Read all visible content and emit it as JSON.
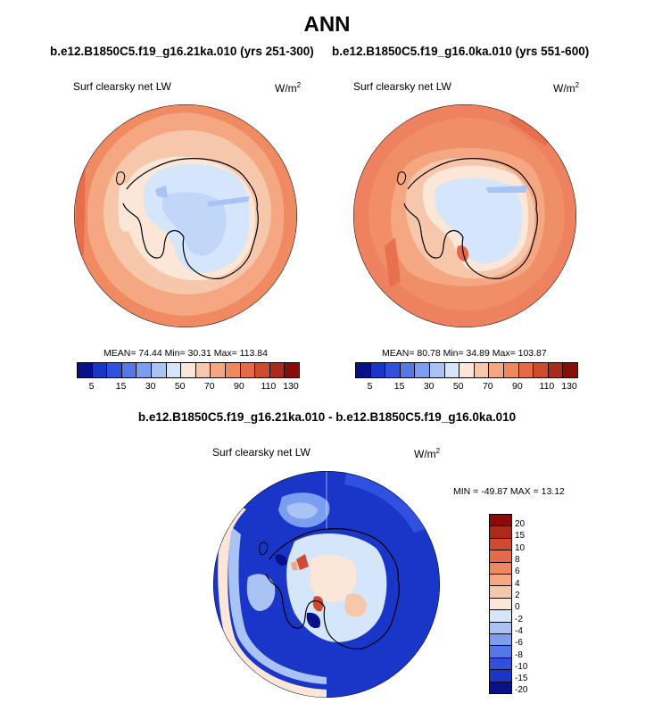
{
  "page": {
    "title": "ANN"
  },
  "panels": [
    {
      "case": "b.e12.B1850C5.f19_g16.21ka.010 (yrs 251-300)",
      "variable": "Surf clearsky net LW",
      "units": "W/m",
      "units_exp": "2",
      "stats_text": "MEAN=  74.44  Min=  30.31  Max=  113.84",
      "stats": {
        "mean": 74.44,
        "min": 30.31,
        "max": 113.84
      }
    },
    {
      "case": "b.e12.B1850C5.f19_g16.0ka.010 (yrs 551-600)",
      "variable": "Surf clearsky net LW",
      "units": "W/m",
      "units_exp": "2",
      "stats_text": "MEAN=  80.78  Min=  34.89  Max=  103.87",
      "stats": {
        "mean": 80.78,
        "min": 34.89,
        "max": 103.87
      }
    }
  ],
  "abs_colorbar": {
    "colors": [
      "#08108a",
      "#1a36c9",
      "#3050e0",
      "#5578e8",
      "#7c9ef0",
      "#a9c4f4",
      "#d6e6fa",
      "#fbe6d7",
      "#f7c7ab",
      "#f4a781",
      "#ef8860",
      "#e66a48",
      "#d14a30",
      "#ac2a1a",
      "#8a0c08"
    ],
    "tick_labels": [
      "5",
      "15",
      "30",
      "50",
      "70",
      "90",
      "110",
      "130"
    ]
  },
  "difference": {
    "title": "b.e12.B1850C5.f19_g16.21ka.010 - b.e12.B1850C5.f19_g16.0ka.010",
    "variable": "Surf clearsky net LW",
    "units": "W/m",
    "units_exp": "2",
    "stats_text": "MIN = -49.87 MAX =  13.12",
    "stats": {
      "min": -49.87,
      "max": 13.12
    }
  },
  "diff_colorbar": {
    "colors": [
      "#8a0c08",
      "#ac2a1a",
      "#d14a30",
      "#e66a48",
      "#ef8860",
      "#f4a781",
      "#f7c7ab",
      "#fbe6d7",
      "#d6e6fa",
      "#a9c4f4",
      "#7c9ef0",
      "#5578e8",
      "#3050e0",
      "#1a36c9",
      "#08108a"
    ],
    "labels": [
      "20",
      "15",
      "10",
      "8",
      "6",
      "4",
      "2",
      "0",
      "-2",
      "-4",
      "-6",
      "-8",
      "-10",
      "-15",
      "-20"
    ]
  }
}
